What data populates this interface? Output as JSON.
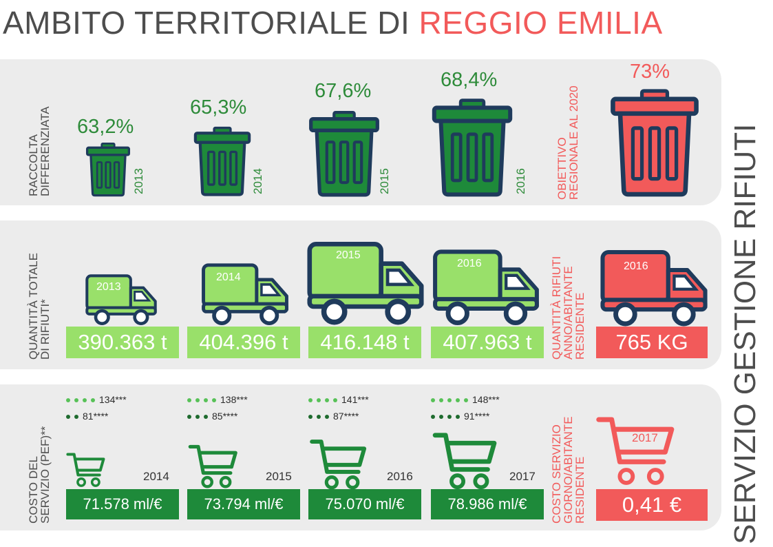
{
  "title": {
    "main": "AMBITO TERRITORIALE DI",
    "highlight": "REGGIO EMILIA"
  },
  "side_title": "SERVIZIO GESTIONE RIFIUTI",
  "colors": {
    "red": "#f25a5a",
    "dark_green": "#1e8a3a",
    "light_green": "#99e06a",
    "navy": "#1f3b5c",
    "panel": "#ececec",
    "text": "#4d4d4d"
  },
  "raccolta": {
    "label_line1": "RACCOLTA",
    "label_line2": "DIFFERENZIATA",
    "items": [
      {
        "year": "2013",
        "value": "63,2%"
      },
      {
        "year": "2014",
        "value": "65,3%"
      },
      {
        "year": "2015",
        "value": "67,6%"
      },
      {
        "year": "2016",
        "value": "68,4%"
      }
    ],
    "target": {
      "label_line1": "OBIETTIVO",
      "label_line2": "REGIONALE AL 2020",
      "value": "73%"
    }
  },
  "quantita": {
    "label_line1": "QUANTITÀ TOTALE",
    "label_line2": "DI RIFIUTI*",
    "items": [
      {
        "year": "2013",
        "value": "390.363 t"
      },
      {
        "year": "2014",
        "value": "404.396 t"
      },
      {
        "year": "2015",
        "value": "416.148 t"
      },
      {
        "year": "2016",
        "value": "407.963 t"
      }
    ],
    "per_capita": {
      "label_line1": "QUANTITÀ RIFIUTI",
      "label_line2": "ANNO/ABITANTE",
      "label_line3": "RESIDENTE",
      "year": "2016",
      "value": "765 KG"
    }
  },
  "costo": {
    "label_line1": "COSTO DEL",
    "label_line2": "SERVIZIO (PEF)**",
    "items": [
      {
        "year": "2014",
        "value": "71.578 ml/€",
        "a": "134***",
        "b": "81****"
      },
      {
        "year": "2015",
        "value": "73.794 ml/€",
        "a": "138***",
        "b": "85****"
      },
      {
        "year": "2016",
        "value": "75.070 ml/€",
        "a": "141***",
        "b": "87****"
      },
      {
        "year": "2017",
        "value": "78.986 ml/€",
        "a": "148***",
        "b": "91****"
      }
    ],
    "per_day": {
      "label_line1": "COSTO SERVIZIO",
      "label_line2": "GIORNO/ABITANTE",
      "label_line3": "RESIDENTE",
      "year": "2017",
      "value": "0,41 €"
    }
  }
}
